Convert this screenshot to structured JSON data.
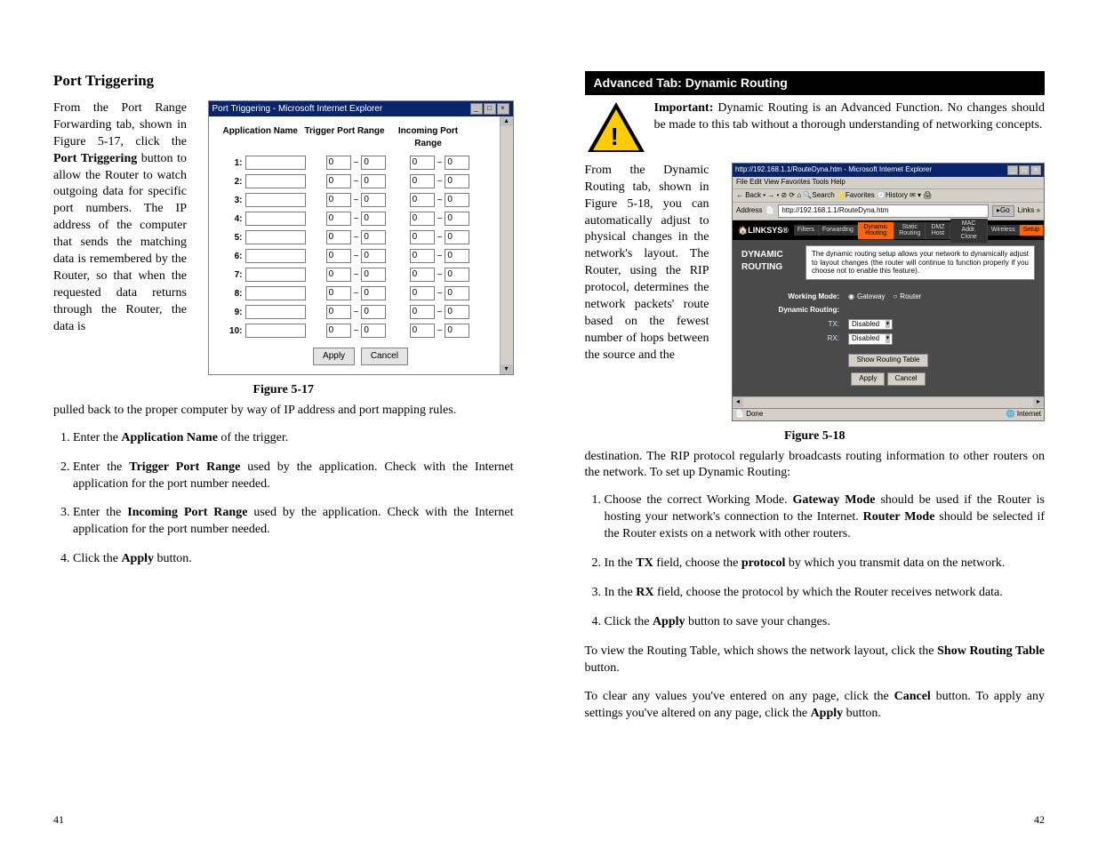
{
  "left": {
    "heading": "Port Triggering",
    "para1_a": "From the Port Range Forwarding tab, shown in Figure 5-17, click the ",
    "para1_b": "Port Triggering",
    "para1_c": " button to allow the Router to watch outgoing data for specific port numbers. The IP address of the computer that sends the matching data is remembered by the Router, so that when the requested data returns through the Router, the data is ",
    "para1_after": "pulled back to the proper computer by way of IP address and port mapping rules.",
    "figcaption": "Figure 5-17",
    "ol": {
      "i1a": "Enter the ",
      "i1b": "Application Name",
      "i1c": " of the trigger.",
      "i2a": "Enter the ",
      "i2b": "Trigger Port Range",
      "i2c": " used by the application. Check with the Internet application for the port number needed.",
      "i3a": "Enter the ",
      "i3b": "Incoming Port Range",
      "i3c": " used by the application. Check with the Internet application for the port number needed.",
      "i4a": "Click the ",
      "i4b": "Apply",
      "i4c": " button."
    },
    "pagenum": "41"
  },
  "ptwin": {
    "title": "Port Triggering - Microsoft Internet Explorer",
    "h_app": "Application Name",
    "h_trg": "Trigger Port Range",
    "h_inc": "Incoming Port Range",
    "rows": [
      "1:",
      "2:",
      "3:",
      "4:",
      "5:",
      "6:",
      "7:",
      "8:",
      "9:",
      "10:"
    ],
    "val": "0",
    "sep": "~",
    "apply": "Apply",
    "cancel": "Cancel"
  },
  "right": {
    "advhead": "Advanced Tab: Dynamic Routing",
    "imp_label": "Important:",
    "imp_text": " Dynamic Routing is an Advanced Function. No changes should be made to this tab without a thorough understanding of networking concepts.",
    "flow": "From the Dynamic Routing tab, shown in Figure 5-18, you can automatically adjust to physical changes in the network's layout. The Router, using the RIP protocol, determines the network packets' route based on the fewest number of hops between the source and the ",
    "flow_after_a": "destination. The ",
    "flow2": "RIP protocol regularly broadcasts routing information to other routers on the network. To set up Dynamic Routing:",
    "figcaption": "Figure 5-18",
    "ol": {
      "i1a": "Choose the correct Working Mode. ",
      "i1b": "Gateway Mode",
      "i1c": " should be used if the Router is hosting your network's connection to the Internet. ",
      "i1d": "Router Mode",
      "i1e": " should be selected if the Router exists on a network with other routers.",
      "i2a": "In the ",
      "i2b": "TX",
      "i2c": " field, choose the ",
      "i2d": "protocol",
      "i2e": " by which you transmit data on the network.",
      "i3a": "In the ",
      "i3b": "RX",
      "i3c": " field, choose the protocol by which the Router receives network data.",
      "i4a": "Click the ",
      "i4b": "Apply",
      "i4c": " button to save your changes."
    },
    "tail1a": "To view the Routing Table, which shows the network layout, click the ",
    "tail1b": "Show Routing Table",
    "tail1c": " button.",
    "tail2a": "To clear any values you've entered on any page, click  the ",
    "tail2b": "Cancel",
    "tail2c": " button.  To apply any settings you've altered on any page, click the ",
    "tail2d": "Apply",
    "tail2e": " button.",
    "pagenum": "42"
  },
  "drwin": {
    "title": "http://192.168.1.1/RouteDyna.htm - Microsoft Internet Explorer",
    "menu": "File   Edit   View   Favorites   Tools   Help",
    "toolbar": "← Back  •  →  •  ⊘  ⟳  ⌂   🔍Search  ⭐Favorites  🕘History   ✉ ▾  🖨",
    "addr_lbl": "Address",
    "url": "http://192.168.1.1/RouteDyna.htm",
    "go": "Go",
    "links": "Links »",
    "logo": "LINKSYS®",
    "tabs": {
      "t1": "Filters",
      "t2": "Forwarding",
      "t3": "Dynamic Routing",
      "t4": "Static Routing",
      "t5": "DMZ Host",
      "t6": "MAC Addr. Clone",
      "t7": "Wireless",
      "t8": "Setup"
    },
    "panel_head": "DYNAMIC ROUTING",
    "panel_desc": "The dynamic routing setup allows your network to dynamically adjust to layout changes (the router will continue to function properly if you choose not to enable this feature).",
    "wm_lbl": "Working Mode:",
    "wm_gw": "Gateway",
    "wm_rt": "Router",
    "dr_lbl": "Dynamic Routing:",
    "tx": "TX:",
    "rx": "RX:",
    "disabled": "Disabled",
    "showrt": "Show Routing Table",
    "apply": "Apply",
    "cancel": "Cancel",
    "status_done": "Done",
    "status_net": "Internet"
  }
}
